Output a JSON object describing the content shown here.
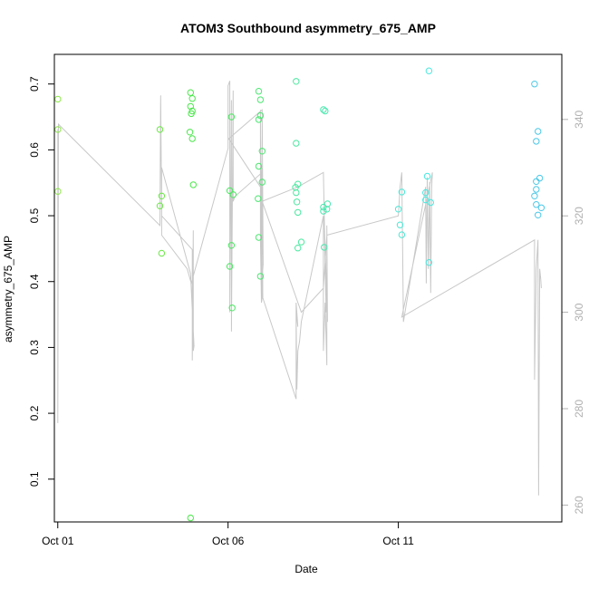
{
  "chart_data": {
    "type": "scatter",
    "title": "ATOM3 Southbound asymmetry_675_AMP",
    "xlabel": "Date",
    "ylabel": "asymmetry_675_AMP",
    "xlim": [
      -0.1,
      14.8
    ],
    "ylim": [
      0.035,
      0.745
    ],
    "y2lim": [
      256.5,
      353.5
    ],
    "grid": false,
    "x_ticks": [
      {
        "value": 0,
        "label": "Oct 01"
      },
      {
        "value": 5,
        "label": "Oct 06"
      },
      {
        "value": 10,
        "label": "Oct 11"
      }
    ],
    "y_ticks": [
      0.1,
      0.2,
      0.3,
      0.4,
      0.5,
      0.6,
      0.7
    ],
    "y2_ticks": [
      260,
      280,
      300,
      320,
      340
    ],
    "x_units": "days since Oct 01",
    "points": [
      {
        "x": 0.0,
        "y": 0.677,
        "color": "#8ee84a"
      },
      {
        "x": 0.0,
        "y": 0.631,
        "color": "#8ee84a"
      },
      {
        "x": 0.0,
        "y": 0.537,
        "color": "#8ee84a"
      },
      {
        "x": 3.0,
        "y": 0.631,
        "color": "#6ee84a"
      },
      {
        "x": 3.05,
        "y": 0.53,
        "color": "#6ee84a"
      },
      {
        "x": 3.0,
        "y": 0.515,
        "color": "#6ee84a"
      },
      {
        "x": 3.05,
        "y": 0.443,
        "color": "#6ee84a"
      },
      {
        "x": 3.9,
        "y": 0.687,
        "color": "#4ae84a"
      },
      {
        "x": 3.95,
        "y": 0.678,
        "color": "#4ae84a"
      },
      {
        "x": 3.9,
        "y": 0.666,
        "color": "#4ae84a"
      },
      {
        "x": 3.95,
        "y": 0.659,
        "color": "#4ae84a"
      },
      {
        "x": 3.92,
        "y": 0.655,
        "color": "#4ae84a"
      },
      {
        "x": 3.88,
        "y": 0.627,
        "color": "#4ae84a"
      },
      {
        "x": 3.95,
        "y": 0.617,
        "color": "#4ae84a"
      },
      {
        "x": 3.98,
        "y": 0.547,
        "color": "#4ae84a"
      },
      {
        "x": 3.9,
        "y": 0.041,
        "color": "#4ae84a"
      },
      {
        "x": 5.1,
        "y": 0.65,
        "color": "#4ae860"
      },
      {
        "x": 5.05,
        "y": 0.538,
        "color": "#4ae860"
      },
      {
        "x": 5.15,
        "y": 0.532,
        "color": "#4ae860"
      },
      {
        "x": 5.1,
        "y": 0.455,
        "color": "#4ae860"
      },
      {
        "x": 5.05,
        "y": 0.423,
        "color": "#4ae860"
      },
      {
        "x": 5.12,
        "y": 0.36,
        "color": "#4ae860"
      },
      {
        "x": 5.9,
        "y": 0.689,
        "color": "#4ae870"
      },
      {
        "x": 5.95,
        "y": 0.676,
        "color": "#4ae870"
      },
      {
        "x": 5.95,
        "y": 0.652,
        "color": "#4ae870"
      },
      {
        "x": 5.9,
        "y": 0.646,
        "color": "#4ae870"
      },
      {
        "x": 6.0,
        "y": 0.598,
        "color": "#4ae870"
      },
      {
        "x": 5.9,
        "y": 0.575,
        "color": "#4ae870"
      },
      {
        "x": 6.0,
        "y": 0.551,
        "color": "#4ae870"
      },
      {
        "x": 5.88,
        "y": 0.526,
        "color": "#4ae870"
      },
      {
        "x": 5.9,
        "y": 0.467,
        "color": "#4ae870"
      },
      {
        "x": 5.95,
        "y": 0.408,
        "color": "#4ae870"
      },
      {
        "x": 7.0,
        "y": 0.704,
        "color": "#4ae8a0"
      },
      {
        "x": 7.0,
        "y": 0.61,
        "color": "#4ae8a0"
      },
      {
        "x": 7.05,
        "y": 0.548,
        "color": "#4ae8a0"
      },
      {
        "x": 6.98,
        "y": 0.543,
        "color": "#4ae8a0"
      },
      {
        "x": 7.0,
        "y": 0.535,
        "color": "#4ae8a0"
      },
      {
        "x": 7.02,
        "y": 0.521,
        "color": "#4ae8a0"
      },
      {
        "x": 7.05,
        "y": 0.505,
        "color": "#4ae8a0"
      },
      {
        "x": 7.15,
        "y": 0.46,
        "color": "#4ae8a0"
      },
      {
        "x": 7.05,
        "y": 0.451,
        "color": "#4ae8a0"
      },
      {
        "x": 7.8,
        "y": 0.661,
        "color": "#4ae8b0"
      },
      {
        "x": 7.85,
        "y": 0.659,
        "color": "#4ae8b0"
      },
      {
        "x": 7.92,
        "y": 0.518,
        "color": "#4ae8b0"
      },
      {
        "x": 7.8,
        "y": 0.513,
        "color": "#4ae8b0"
      },
      {
        "x": 7.9,
        "y": 0.51,
        "color": "#4ae8b0"
      },
      {
        "x": 7.8,
        "y": 0.507,
        "color": "#4ae8b0"
      },
      {
        "x": 7.82,
        "y": 0.452,
        "color": "#4ae8b0"
      },
      {
        "x": 10.1,
        "y": 0.536,
        "color": "#4ae8d8"
      },
      {
        "x": 10.0,
        "y": 0.51,
        "color": "#4ae8d8"
      },
      {
        "x": 10.05,
        "y": 0.486,
        "color": "#4ae8d8"
      },
      {
        "x": 10.1,
        "y": 0.471,
        "color": "#4ae8d8"
      },
      {
        "x": 10.9,
        "y": 0.72,
        "color": "#4ae8e0"
      },
      {
        "x": 10.85,
        "y": 0.56,
        "color": "#4ae8e0"
      },
      {
        "x": 10.8,
        "y": 0.535,
        "color": "#4ae8e0"
      },
      {
        "x": 10.8,
        "y": 0.524,
        "color": "#4ae8e0"
      },
      {
        "x": 10.95,
        "y": 0.52,
        "color": "#4ae8e0"
      },
      {
        "x": 10.9,
        "y": 0.429,
        "color": "#4ae8e0"
      },
      {
        "x": 14.0,
        "y": 0.7,
        "color": "#4ac8e8"
      },
      {
        "x": 14.1,
        "y": 0.628,
        "color": "#4ac8e8"
      },
      {
        "x": 14.05,
        "y": 0.613,
        "color": "#4ac8e8"
      },
      {
        "x": 14.15,
        "y": 0.557,
        "color": "#4ac8e8"
      },
      {
        "x": 14.05,
        "y": 0.552,
        "color": "#4ac8e8"
      },
      {
        "x": 14.05,
        "y": 0.54,
        "color": "#4ac8e8"
      },
      {
        "x": 14.0,
        "y": 0.53,
        "color": "#4ac8e8"
      },
      {
        "x": 14.05,
        "y": 0.517,
        "color": "#4ac8e8"
      },
      {
        "x": 14.2,
        "y": 0.512,
        "color": "#4ac8e8"
      },
      {
        "x": 14.1,
        "y": 0.501,
        "color": "#4ac8e8"
      }
    ],
    "line_series_y2": [
      [
        0.0,
        338
      ],
      [
        0.0,
        277
      ],
      [
        0.02,
        339
      ],
      [
        3.0,
        318
      ],
      [
        3.02,
        345
      ],
      [
        3.05,
        320
      ],
      [
        3.95,
        313
      ],
      [
        3.95,
        290
      ],
      [
        3.98,
        317
      ],
      [
        3.98,
        292
      ],
      [
        4.0,
        293
      ],
      [
        3.9,
        308
      ],
      [
        3.05,
        330
      ],
      [
        3.05,
        316
      ],
      [
        3.8,
        309
      ],
      [
        3.92,
        306
      ],
      [
        5.0,
        334
      ],
      [
        5.0,
        347
      ],
      [
        5.05,
        348
      ],
      [
        5.05,
        300
      ],
      [
        5.1,
        344
      ],
      [
        5.1,
        296
      ],
      [
        5.15,
        346
      ],
      [
        5.15,
        323
      ],
      [
        5.2,
        324
      ],
      [
        6.0,
        329
      ],
      [
        6.0,
        312
      ],
      [
        5.95,
        342
      ],
      [
        5.95,
        315
      ],
      [
        5.98,
        302
      ],
      [
        6.0,
        303
      ],
      [
        5.95,
        326
      ],
      [
        5.02,
        336
      ],
      [
        6.0,
        342
      ],
      [
        6.03,
        310
      ],
      [
        5.98,
        305
      ],
      [
        6.0,
        330
      ],
      [
        6.02,
        303
      ],
      [
        7.0,
        282
      ],
      [
        7.0,
        302
      ],
      [
        7.05,
        297
      ],
      [
        7.0,
        300
      ],
      [
        7.02,
        284
      ],
      [
        7.05,
        292
      ],
      [
        7.1,
        294
      ],
      [
        7.15,
        298
      ],
      [
        7.8,
        320
      ],
      [
        7.8,
        292
      ],
      [
        7.85,
        302
      ],
      [
        7.9,
        289
      ],
      [
        7.9,
        318
      ],
      [
        7.92,
        298
      ],
      [
        7.82,
        320
      ],
      [
        7.88,
        300
      ],
      [
        7.8,
        329
      ],
      [
        7.05,
        326
      ],
      [
        6.0,
        323
      ],
      [
        7.15,
        300
      ],
      [
        7.8,
        305
      ],
      [
        7.9,
        316
      ],
      [
        10.0,
        320
      ],
      [
        10.05,
        326
      ],
      [
        10.1,
        329
      ],
      [
        10.15,
        298
      ],
      [
        10.8,
        326
      ],
      [
        10.82,
        306
      ],
      [
        10.85,
        328
      ],
      [
        10.88,
        309
      ],
      [
        10.92,
        327
      ],
      [
        10.95,
        304
      ],
      [
        10.98,
        326
      ],
      [
        11.0,
        329
      ],
      [
        10.1,
        299
      ],
      [
        14.0,
        315
      ],
      [
        14.0,
        286
      ],
      [
        14.05,
        309
      ],
      [
        14.1,
        315
      ],
      [
        14.12,
        262
      ],
      [
        14.15,
        309
      ],
      [
        14.18,
        307
      ],
      [
        14.2,
        305
      ]
    ]
  }
}
